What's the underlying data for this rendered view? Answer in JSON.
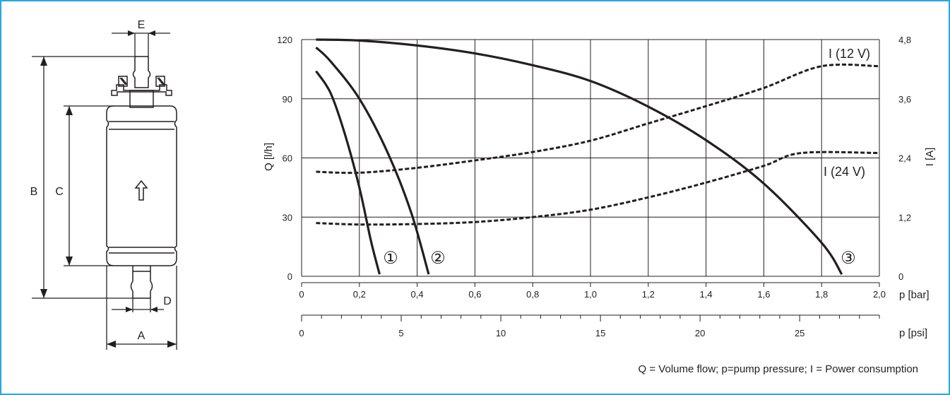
{
  "colors": {
    "frame": "#27a8e0",
    "ink": "#231f20",
    "grid": "#231f20",
    "background": "#ffffff"
  },
  "pump_drawing": {
    "dimension_labels": {
      "a": "A",
      "b": "B",
      "c": "C",
      "d": "D",
      "e": "E"
    },
    "flow_arrow_icon": "up-arrow-outline-icon"
  },
  "chart_data": {
    "type": "line",
    "title": "",
    "x_axis": {
      "label": "p [bar]",
      "range": [
        0,
        2.0
      ],
      "ticks": [
        "0",
        "0,2",
        "0,4",
        "0,6",
        "0,8",
        "1,0",
        "1,2",
        "1,4",
        "1,6",
        "1,8",
        "2,0"
      ]
    },
    "x2_axis": {
      "label": "p [psi]",
      "range": [
        0,
        29.0
      ],
      "ticks": [
        "0",
        "5",
        "10",
        "15",
        "20",
        "25"
      ]
    },
    "y_axis": {
      "label": "Q [l/h]",
      "range": [
        0,
        120
      ],
      "ticks": [
        "0",
        "30",
        "60",
        "90",
        "120"
      ]
    },
    "y2_axis": {
      "label": "I [A]",
      "range": [
        0,
        4.8
      ],
      "ticks": [
        "0",
        "1,2",
        "2,4",
        "3,6",
        "4,8"
      ]
    },
    "grid": true,
    "series": [
      {
        "name": "①",
        "axis": "y",
        "style": "solid",
        "x": [
          0.05,
          0.1,
          0.15,
          0.2,
          0.24,
          0.27
        ],
        "values": [
          104,
          93,
          72,
          45,
          18,
          1
        ]
      },
      {
        "name": "②",
        "axis": "y",
        "style": "solid",
        "x": [
          0.05,
          0.1,
          0.2,
          0.3,
          0.38,
          0.44
        ],
        "values": [
          116,
          109,
          90,
          62,
          32,
          1
        ]
      },
      {
        "name": "③",
        "axis": "y",
        "style": "solid",
        "x": [
          0.05,
          0.2,
          0.4,
          0.6,
          0.8,
          1.0,
          1.2,
          1.4,
          1.6,
          1.8,
          1.87
        ],
        "values": [
          120,
          119.5,
          117,
          113,
          107,
          99,
          86,
          69,
          47,
          17,
          1
        ]
      },
      {
        "name": "I (12 V)",
        "axis": "y2",
        "style": "dashed",
        "x": [
          0.05,
          0.2,
          0.4,
          0.6,
          0.8,
          1.0,
          1.2,
          1.4,
          1.6,
          1.8,
          2.0
        ],
        "values": [
          2.12,
          2.1,
          2.2,
          2.35,
          2.52,
          2.75,
          3.1,
          3.45,
          3.82,
          4.26,
          4.26
        ]
      },
      {
        "name": "I (24 V)",
        "axis": "y2",
        "style": "dashed",
        "x": [
          0.05,
          0.2,
          0.4,
          0.6,
          0.8,
          1.0,
          1.2,
          1.4,
          1.6,
          1.73,
          2.0
        ],
        "values": [
          1.08,
          1.05,
          1.06,
          1.1,
          1.2,
          1.35,
          1.6,
          1.9,
          2.24,
          2.5,
          2.5
        ]
      }
    ],
    "series_labels": [
      "①",
      "②",
      "③",
      "I (12 V)",
      "I (24 V)"
    ],
    "caption": "Q = Volume flow; p=pump pressure; I = Power consumption"
  }
}
